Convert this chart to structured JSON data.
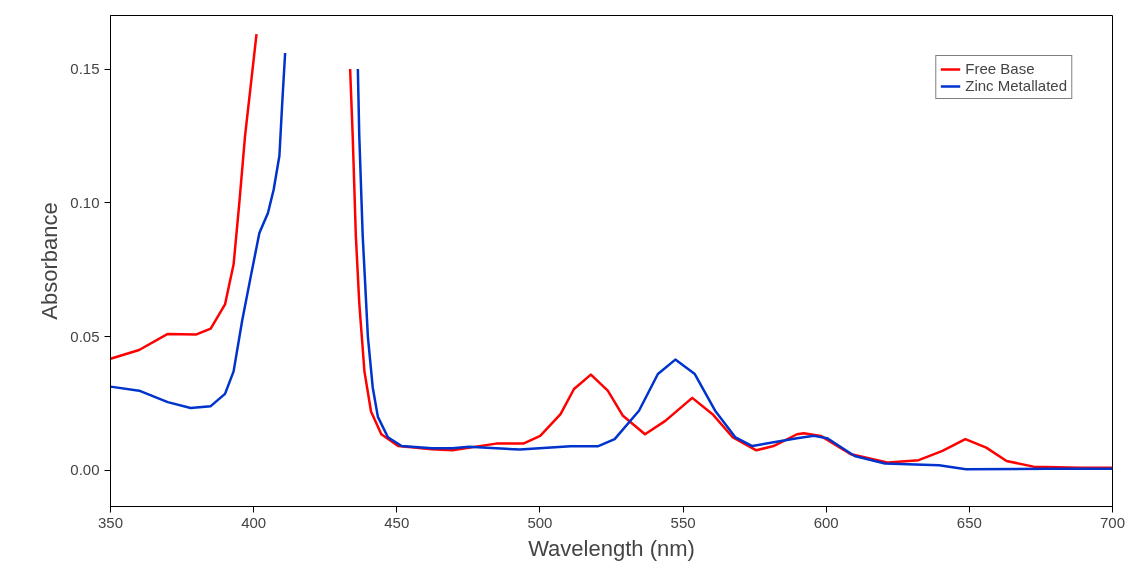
{
  "chart_data": {
    "type": "line",
    "xlabel": "Wavelength (nm)",
    "ylabel": "Absorbance",
    "xlim": [
      350,
      700
    ],
    "ylim": [
      -0.0135,
      0.17
    ],
    "xticks": [
      350,
      400,
      450,
      500,
      550,
      600,
      650,
      700
    ],
    "yticks": [
      {
        "value": 0,
        "label": "0.00"
      },
      {
        "value": 0.05,
        "label": "0.05"
      },
      {
        "value": 0.1,
        "label": "0.10"
      },
      {
        "value": 0.15,
        "label": "0.15"
      }
    ],
    "grid": false,
    "legend": "top right",
    "line_style": "solid",
    "marker": "none",
    "series": [
      {
        "name": "Free Base",
        "color": "#ff0000",
        "x": [
          350,
          360,
          370,
          380,
          385,
          390,
          393,
          395,
          397,
          399,
          401,
          402,
          417,
          433.1,
          433.7,
          434.6,
          435.7,
          436.9,
          438.7,
          441,
          444.6,
          450.5,
          462.3,
          469.4,
          484.7,
          494.2,
          500.1,
          507.2,
          511.9,
          517.8,
          523.7,
          529.0,
          536.7,
          543.8,
          553.2,
          560.3,
          567.4,
          575.6,
          581.6,
          589.8,
          592.2,
          598.1,
          608.7,
          621.7,
          632.3,
          640.6,
          648.6,
          655.9,
          663.0,
          672.4,
          689.0,
          700
        ],
        "values": [
          0.0417,
          0.045,
          0.051,
          0.0508,
          0.053,
          0.062,
          0.077,
          0.1,
          0.125,
          0.144,
          0.163,
          null,
          null,
          null,
          0.15,
          0.125,
          0.0876,
          0.0624,
          0.037,
          0.022,
          0.0135,
          0.0091,
          0.0079,
          0.0075,
          0.01,
          0.01,
          0.0129,
          0.021,
          0.0304,
          0.0358,
          0.0298,
          0.0204,
          0.0135,
          0.0185,
          0.0271,
          0.021,
          0.0123,
          0.0075,
          0.0091,
          0.0135,
          0.0139,
          0.0129,
          0.006,
          0.0029,
          0.0038,
          0.0073,
          0.0117,
          0.0085,
          0.0035,
          0.0014,
          0.001,
          0.001
        ]
      },
      {
        "name": "Zinc Metallated",
        "color": "#0033cc",
        "x": [
          350,
          360,
          370,
          378,
          385,
          390,
          393,
          396,
          399,
          402,
          405,
          407,
          409,
          410,
          411,
          412,
          424,
          436.0,
          436.4,
          436.9,
          438.1,
          439.9,
          441.6,
          443.4,
          446.9,
          451.7,
          462.3,
          469.4,
          475.2,
          493.0,
          510.7,
          520.2,
          526.1,
          534.6,
          541.2,
          547.3,
          554.1,
          561.2,
          568.3,
          574.2,
          589.8,
          595.7,
          600.4,
          609.9,
          620.5,
          639.4,
          648.8,
          677.2,
          700
        ],
        "values": [
          0.0313,
          0.0298,
          0.0255,
          0.0233,
          0.024,
          0.0286,
          0.037,
          0.056,
          0.0725,
          0.0887,
          0.0962,
          0.105,
          0.1176,
          0.1376,
          0.156,
          null,
          null,
          null,
          0.15,
          0.125,
          0.0876,
          0.05,
          0.031,
          0.02,
          0.0124,
          0.0091,
          0.0083,
          0.0083,
          0.0088,
          0.0078,
          0.009,
          0.009,
          0.0117,
          0.0223,
          0.036,
          0.0414,
          0.036,
          0.0223,
          0.0123,
          0.0091,
          0.012,
          0.0129,
          0.012,
          0.0054,
          0.0026,
          0.0019,
          0.0004,
          0.0006,
          0.0006
        ]
      }
    ]
  }
}
